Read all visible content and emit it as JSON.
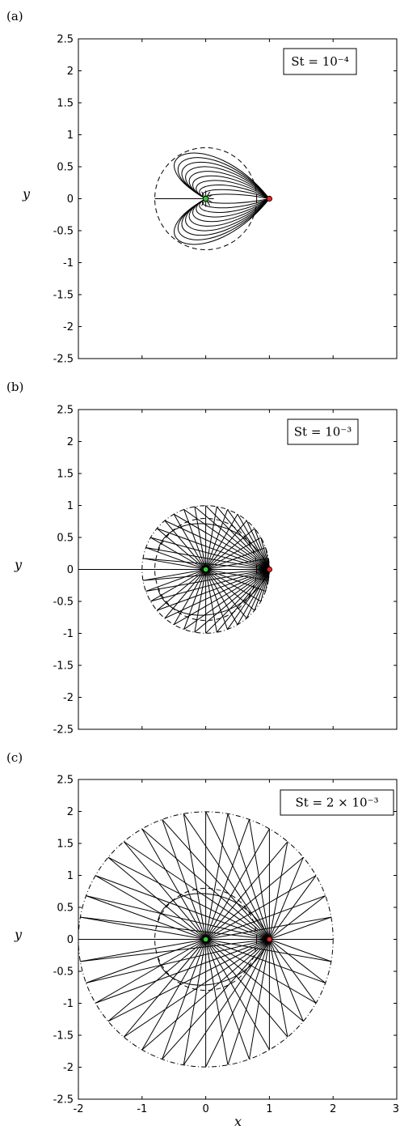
{
  "chart_data": [
    {
      "type": "line",
      "panel_label": "(a)",
      "legend": "St = 10⁻⁴",
      "xlabel": "",
      "ylabel": "y",
      "xlim": [
        -2,
        3
      ],
      "ylim": [
        -2.5,
        2.5
      ],
      "yticks": [
        "2.5",
        "2",
        "1.5",
        "1",
        "0.5",
        "0",
        "-0.5",
        "-1",
        "-1.5",
        "-2",
        "-2.5"
      ],
      "xticks": [],
      "center_point": [
        0,
        0
      ],
      "source_point": [
        1,
        0
      ],
      "dashed_circle": {
        "center": [
          0,
          0
        ],
        "radius": 0.8
      },
      "dashdot_circle": null,
      "trajectory_count": 36,
      "trajectory_reach": 0.0
    },
    {
      "type": "line",
      "panel_label": "(b)",
      "legend": "St = 10⁻³",
      "xlabel": "",
      "ylabel": "y",
      "xlim": [
        -2,
        3
      ],
      "ylim": [
        -2.5,
        2.5
      ],
      "yticks": [
        "2.5",
        "2",
        "1.5",
        "1",
        "0.5",
        "0",
        "-0.5",
        "-1",
        "-1.5",
        "-2",
        "-2.5"
      ],
      "xticks": [],
      "center_point": [
        0,
        0
      ],
      "source_point": [
        1,
        0
      ],
      "dashed_circle": {
        "center": [
          0,
          0
        ],
        "radius": 0.8
      },
      "dashdot_circle": {
        "center": [
          0,
          0
        ],
        "radius": 1.0
      },
      "trajectory_count": 36,
      "trajectory_reach": 1.0
    },
    {
      "type": "line",
      "panel_label": "(c)",
      "legend": "St = 2 × 10⁻³",
      "xlabel": "x",
      "ylabel": "y",
      "xlim": [
        -2,
        3
      ],
      "ylim": [
        -2.5,
        2.5
      ],
      "yticks": [
        "2.5",
        "2",
        "1.5",
        "1",
        "0.5",
        "0",
        "-0.5",
        "-1",
        "-1.5",
        "-2",
        "-2.5"
      ],
      "xticks": [
        "-2",
        "-1",
        "0",
        "1",
        "2",
        "3"
      ],
      "center_point": [
        0,
        0
      ],
      "source_point": [
        1,
        0
      ],
      "dashed_circle": {
        "center": [
          0,
          0
        ],
        "radius": 0.8
      },
      "dashdot_circle": {
        "center": [
          0,
          0
        ],
        "radius": 2.0
      },
      "trajectory_count": 36,
      "trajectory_reach": 2.0
    }
  ]
}
